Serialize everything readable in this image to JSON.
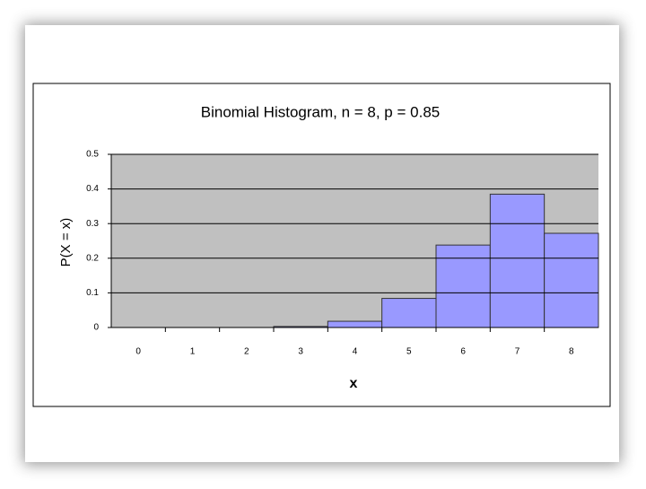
{
  "chart_data": {
    "type": "bar",
    "title": "Binomial Histogram, n = 8, p = 0.85",
    "x_label": "x",
    "y_label": "P(X = x)",
    "categories": [
      "0",
      "1",
      "2",
      "3",
      "4",
      "5",
      "6",
      "7",
      "8"
    ],
    "values": [
      0,
      0,
      0,
      0.003,
      0.018,
      0.084,
      0.238,
      0.385,
      0.272
    ],
    "color": "#9999ff",
    "ylim": [
      0,
      0.5
    ],
    "yticks": [
      0,
      0.1,
      0.2,
      0.3,
      0.4,
      0.5
    ],
    "grid": true
  }
}
